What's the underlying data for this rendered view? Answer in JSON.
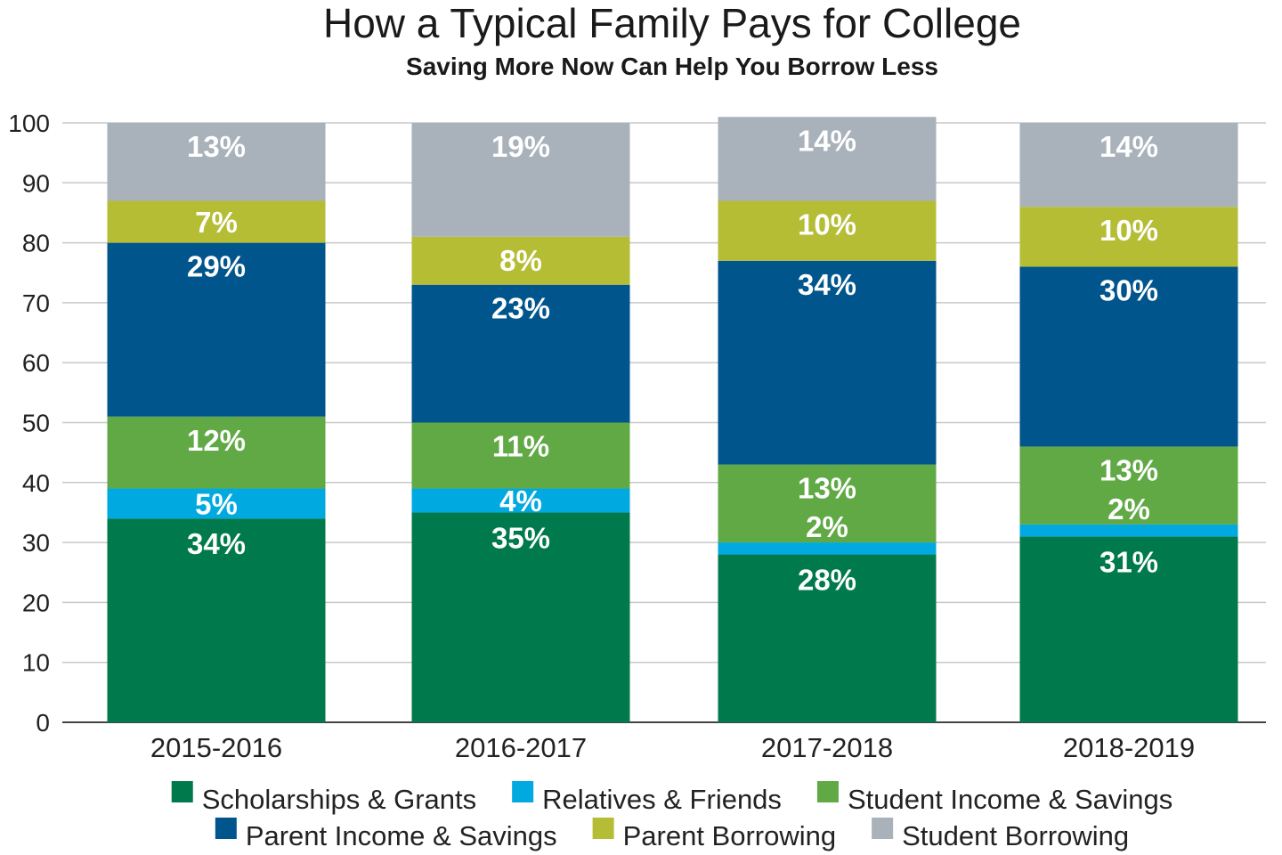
{
  "chart_data": {
    "type": "bar",
    "stacked": true,
    "title": "How a Typical Family Pays for College",
    "subtitle": "Saving More Now Can Help You Borrow Less",
    "xlabel": "",
    "ylabel": "",
    "ylim": [
      0,
      100
    ],
    "yticks": [
      "0",
      "10",
      "20",
      "30",
      "40",
      "50",
      "60",
      "70",
      "80",
      "90",
      "100"
    ],
    "categories": [
      "2015-2016",
      "2016-2017",
      "2017-2018",
      "2018-2019"
    ],
    "legend_position": "bottom",
    "grid": "horizontal",
    "series": [
      {
        "name": "Scholarships & Grants",
        "color": "#007A4D",
        "values": [
          34,
          35,
          28,
          31
        ],
        "labels": [
          "34%",
          "35%",
          "28%",
          "31%"
        ]
      },
      {
        "name": "Relatives & Friends",
        "color": "#00A9E0",
        "values": [
          5,
          4,
          2,
          2
        ],
        "labels": [
          "5%",
          "4%",
          "2%",
          "2%"
        ]
      },
      {
        "name": "Student Income & Savings",
        "color": "#60A945",
        "values": [
          12,
          11,
          13,
          13
        ],
        "labels": [
          "12%",
          "11%",
          "13%",
          "13%"
        ]
      },
      {
        "name": "Parent Income & Savings",
        "color": "#00558C",
        "values": [
          29,
          23,
          34,
          30
        ],
        "labels": [
          "29%",
          "23%",
          "34%",
          "30%"
        ]
      },
      {
        "name": "Parent Borrowing",
        "color": "#B5BD34",
        "values": [
          7,
          8,
          10,
          10
        ],
        "labels": [
          "7%",
          "8%",
          "10%",
          "10%"
        ]
      },
      {
        "name": "Student Borrowing",
        "color": "#A9B2BA",
        "values": [
          13,
          19,
          14,
          14
        ],
        "labels": [
          "13%",
          "19%",
          "14%",
          "14%"
        ]
      }
    ]
  }
}
